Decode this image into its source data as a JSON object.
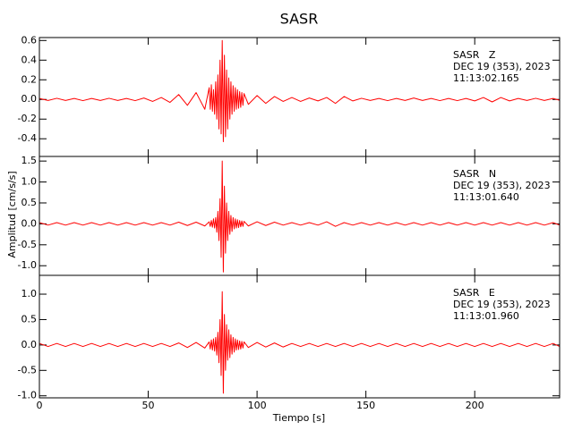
{
  "chart_data": [
    {
      "type": "line",
      "title": "SASR",
      "color": "#ff0000",
      "annotations": [
        "SASR   Z",
        "DEC 19 (353), 2023",
        "11:13:02.165"
      ],
      "xlim": [
        0,
        239
      ],
      "ylim": [
        -0.58,
        0.63
      ],
      "yticks": [
        -0.4,
        -0.2,
        {
          "value": 0,
          "label": "0.0"
        },
        0.2,
        0.4,
        0.6
      ],
      "x": [
        0,
        4,
        8,
        12,
        16,
        20,
        24,
        28,
        32,
        36,
        40,
        44,
        48,
        52,
        56,
        60,
        64,
        68,
        72,
        76,
        78,
        78.5,
        79,
        79.5,
        80,
        80.5,
        81,
        81.5,
        82,
        82.5,
        83,
        83.5,
        84,
        84.5,
        85,
        85.5,
        86,
        86.5,
        87,
        87.5,
        88,
        88.5,
        89,
        89.5,
        90,
        90.5,
        91,
        91.5,
        92,
        92.5,
        93,
        93.5,
        94,
        96,
        100,
        104,
        108,
        112,
        116,
        120,
        124,
        128,
        132,
        136,
        140,
        144,
        148,
        152,
        156,
        160,
        164,
        168,
        172,
        176,
        180,
        184,
        188,
        192,
        196,
        200,
        204,
        208,
        212,
        216,
        220,
        224,
        228,
        232,
        236,
        239
      ],
      "values": [
        0.01,
        -0.01,
        0.012,
        -0.01,
        0.01,
        -0.012,
        0.01,
        -0.01,
        0.012,
        -0.01,
        0.01,
        -0.012,
        0.015,
        -0.02,
        0.02,
        -0.03,
        0.05,
        -0.06,
        0.07,
        -0.1,
        0.12,
        -0.1,
        0.15,
        -0.12,
        0.1,
        -0.15,
        0.18,
        -0.2,
        0.25,
        -0.3,
        0.4,
        -0.35,
        0.6,
        -0.43,
        0.45,
        -0.38,
        0.3,
        -0.3,
        0.22,
        -0.2,
        0.18,
        -0.15,
        0.14,
        -0.12,
        0.12,
        -0.1,
        0.1,
        -0.09,
        0.08,
        -0.08,
        0.07,
        -0.06,
        0.06,
        -0.05,
        0.04,
        -0.04,
        0.03,
        -0.02,
        0.02,
        -0.02,
        0.015,
        -0.015,
        0.02,
        -0.04,
        0.03,
        -0.015,
        0.012,
        -0.01,
        0.01,
        -0.012,
        0.01,
        -0.01,
        0.015,
        -0.01,
        0.01,
        -0.012,
        0.01,
        -0.012,
        0.01,
        -0.015,
        0.02,
        -0.025,
        0.02,
        -0.015,
        0.01,
        -0.01,
        0.012,
        -0.01,
        0.01,
        -0.008
      ]
    },
    {
      "type": "line",
      "y_label": "Amplitud [cm/s/s]",
      "color": "#ff0000",
      "annotations": [
        "SASR   N",
        "DEC 19 (353), 2023",
        "11:13:01.640"
      ],
      "xlim": [
        0,
        239
      ],
      "ylim": [
        -1.23,
        1.61
      ],
      "yticks": [
        {
          "value": -1,
          "label": "-1.0"
        },
        -0.5,
        {
          "value": 0,
          "label": "0.0"
        },
        0.5,
        {
          "value": 1,
          "label": "1.0"
        },
        1.5
      ],
      "x": [
        0,
        4,
        8,
        12,
        16,
        20,
        24,
        28,
        32,
        36,
        40,
        44,
        48,
        52,
        56,
        60,
        64,
        68,
        72,
        76,
        78,
        78.5,
        79,
        79.5,
        80,
        80.5,
        81,
        81.5,
        82,
        82.5,
        83,
        83.5,
        84,
        84.5,
        85,
        85.5,
        86,
        86.5,
        87,
        87.5,
        88,
        88.5,
        89,
        89.5,
        90,
        90.5,
        91,
        91.5,
        92,
        92.5,
        93,
        93.5,
        94,
        96,
        100,
        104,
        108,
        112,
        116,
        120,
        124,
        128,
        132,
        136,
        140,
        144,
        148,
        152,
        156,
        160,
        164,
        168,
        172,
        176,
        180,
        184,
        188,
        192,
        196,
        200,
        204,
        208,
        212,
        216,
        220,
        224,
        228,
        232,
        236,
        239
      ],
      "values": [
        0.03,
        -0.03,
        0.03,
        -0.03,
        0.03,
        -0.03,
        0.03,
        -0.03,
        0.03,
        -0.03,
        0.03,
        -0.03,
        0.03,
        -0.03,
        0.03,
        -0.03,
        0.04,
        -0.04,
        0.04,
        -0.05,
        0.05,
        -0.06,
        0.08,
        -0.08,
        0.12,
        -0.1,
        0.15,
        -0.2,
        0.3,
        -0.4,
        0.6,
        -0.8,
        1.5,
        -1.15,
        0.9,
        -0.7,
        0.5,
        -0.4,
        0.3,
        -0.25,
        0.2,
        -0.18,
        0.15,
        -0.12,
        0.12,
        -0.1,
        0.1,
        -0.09,
        0.08,
        -0.07,
        0.07,
        -0.06,
        0.06,
        -0.05,
        0.05,
        -0.04,
        0.04,
        -0.03,
        0.03,
        -0.03,
        0.03,
        -0.03,
        0.05,
        -0.06,
        0.03,
        -0.03,
        0.03,
        -0.03,
        0.03,
        -0.03,
        0.03,
        -0.03,
        0.03,
        -0.03,
        0.03,
        -0.03,
        0.03,
        -0.03,
        0.03,
        -0.03,
        0.03,
        -0.03,
        0.03,
        -0.03,
        0.03,
        -0.03,
        0.03,
        -0.03,
        0.03,
        -0.03
      ]
    },
    {
      "type": "line",
      "x_label": "Tiempo [s]",
      "color": "#ff0000",
      "annotations": [
        "SASR   E",
        "DEC 19 (353), 2023",
        "11:13:01.960"
      ],
      "xlim": [
        0,
        239
      ],
      "ylim": [
        -1.04,
        1.37
      ],
      "xticks": [
        0,
        50,
        100,
        150,
        200
      ],
      "yticks": [
        {
          "value": -1,
          "label": "-1.0"
        },
        -0.5,
        {
          "value": 0,
          "label": "0.0"
        },
        0.5,
        {
          "value": 1,
          "label": "1.0"
        }
      ],
      "x": [
        0,
        4,
        8,
        12,
        16,
        20,
        24,
        28,
        32,
        36,
        40,
        44,
        48,
        52,
        56,
        60,
        64,
        68,
        72,
        76,
        78,
        78.5,
        79,
        79.5,
        80,
        80.5,
        81,
        81.5,
        82,
        82.5,
        83,
        83.5,
        84,
        84.5,
        85,
        85.5,
        86,
        86.5,
        87,
        87.5,
        88,
        88.5,
        89,
        89.5,
        90,
        90.5,
        91,
        91.5,
        92,
        92.5,
        93,
        93.5,
        94,
        96,
        100,
        104,
        108,
        112,
        116,
        120,
        124,
        128,
        132,
        136,
        140,
        144,
        148,
        152,
        156,
        160,
        164,
        168,
        172,
        176,
        180,
        184,
        188,
        192,
        196,
        200,
        204,
        208,
        212,
        216,
        220,
        224,
        228,
        232,
        236,
        239
      ],
      "values": [
        0.03,
        -0.03,
        0.03,
        -0.03,
        0.03,
        -0.03,
        0.03,
        -0.03,
        0.03,
        -0.03,
        0.03,
        -0.03,
        0.03,
        -0.03,
        0.03,
        -0.03,
        0.04,
        -0.05,
        0.05,
        -0.06,
        0.06,
        -0.08,
        0.1,
        -0.1,
        0.12,
        -0.12,
        0.15,
        -0.2,
        0.25,
        -0.35,
        0.5,
        -0.6,
        1.05,
        -0.95,
        0.6,
        -0.5,
        0.4,
        -0.3,
        0.3,
        -0.25,
        0.2,
        -0.18,
        0.15,
        -0.14,
        0.12,
        -0.1,
        0.1,
        -0.09,
        0.08,
        -0.08,
        0.07,
        -0.06,
        0.06,
        -0.05,
        0.05,
        -0.04,
        0.04,
        -0.04,
        0.03,
        -0.03,
        0.03,
        -0.03,
        0.03,
        -0.03,
        0.03,
        -0.03,
        0.03,
        -0.03,
        0.03,
        -0.03,
        0.03,
        -0.03,
        0.03,
        -0.03,
        0.03,
        -0.03,
        0.03,
        -0.03,
        0.03,
        -0.03,
        0.03,
        -0.03,
        0.03,
        -0.03,
        0.03,
        -0.03,
        0.03,
        -0.03,
        0.03,
        -0.03
      ]
    }
  ]
}
